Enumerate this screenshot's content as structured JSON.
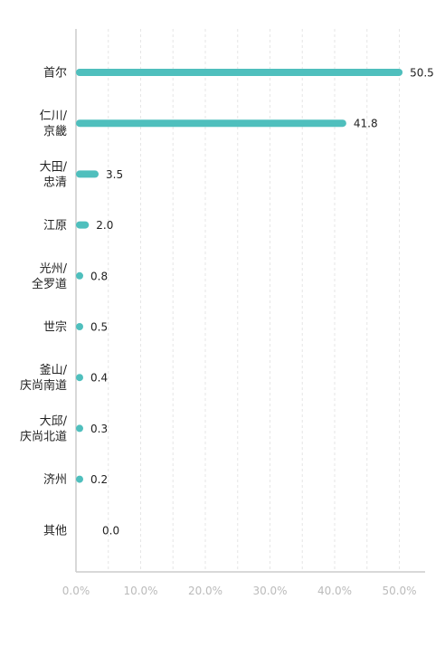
{
  "chart_data": {
    "type": "bar",
    "orientation": "horizontal",
    "categories": [
      [
        "首尔"
      ],
      [
        "仁川/",
        "京畿"
      ],
      [
        "大田/",
        "忠清"
      ],
      [
        "江原"
      ],
      [
        "光州/",
        "全罗道"
      ],
      [
        "世宗"
      ],
      [
        "釜山/",
        "庆尚南道"
      ],
      [
        "大邱/",
        "庆尚北道"
      ],
      [
        "济州"
      ],
      [
        "其他"
      ]
    ],
    "values": [
      50.5,
      41.8,
      3.5,
      2.0,
      0.8,
      0.5,
      0.4,
      0.3,
      0.2,
      0.0
    ],
    "value_labels": [
      "50.5",
      "41.8",
      "3.5",
      "2.0",
      "0.8",
      "0.5",
      "0.4",
      "0.3",
      "0.2",
      "0.0"
    ],
    "x_ticks": [
      "0.0%",
      "10.0%",
      "20.0%",
      "30.0%",
      "40.0%",
      "50.0%"
    ],
    "xlim": [
      0,
      54
    ],
    "grid": "vertical dashed",
    "legend": "none",
    "bar_color": "#4fbfbd",
    "title": "",
    "xlabel": "",
    "ylabel": ""
  }
}
